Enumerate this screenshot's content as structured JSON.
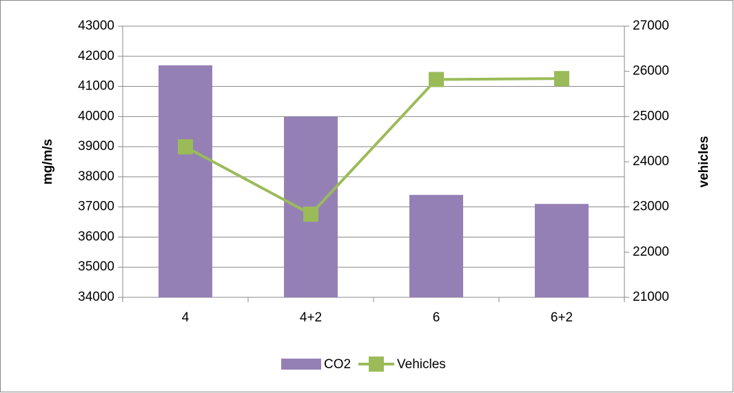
{
  "chart_data": {
    "type": "bar",
    "categories": [
      "4",
      "4+2",
      "6",
      "6+2"
    ],
    "y_label": "mg/m/s",
    "y2_label": "vehicles",
    "ylim": [
      34000,
      43000
    ],
    "yticks": [
      34000,
      35000,
      36000,
      37000,
      38000,
      39000,
      40000,
      41000,
      42000,
      43000
    ],
    "y2lim": [
      21000,
      27000
    ],
    "y2ticks": [
      21000,
      22000,
      23000,
      24000,
      25000,
      26000,
      27000
    ],
    "grid": true,
    "legend": "bottom",
    "series": [
      {
        "name": "CO2",
        "type": "bar",
        "color": "#9580b5",
        "values": [
          41700,
          40000,
          37400,
          37100
        ]
      },
      {
        "name": "Vehicles",
        "type": "line",
        "axis": "y2",
        "color": "#9bbb59",
        "values": [
          24330,
          22840,
          25820,
          25840
        ]
      }
    ]
  }
}
